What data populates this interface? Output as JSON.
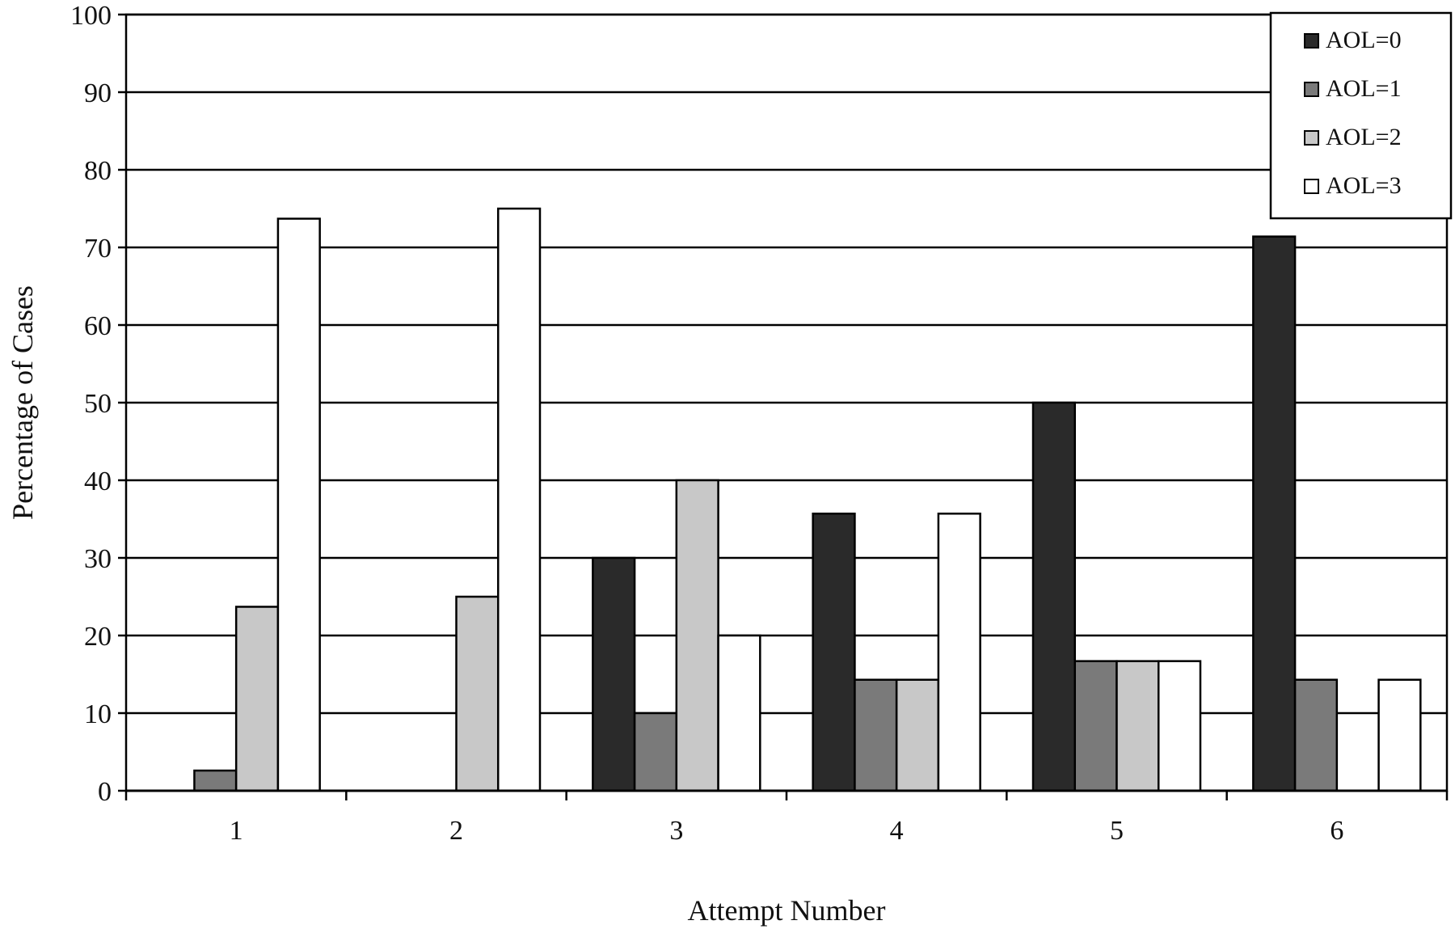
{
  "chart_data": {
    "type": "bar",
    "title": "",
    "xlabel": "Attempt Number",
    "ylabel": "Percentage of Cases",
    "categories": [
      "1",
      "2",
      "3",
      "4",
      "5",
      "6"
    ],
    "ylim": [
      0,
      100
    ],
    "yticks": [
      0,
      10,
      20,
      30,
      40,
      50,
      60,
      70,
      80,
      90,
      100
    ],
    "grid": true,
    "legend_position": "top-right",
    "series": [
      {
        "name": "AOL=0",
        "color": "#2a2a2a",
        "values": [
          0,
          0,
          30,
          35.7,
          50,
          71.4
        ]
      },
      {
        "name": "AOL=1",
        "color": "#7a7a7a",
        "values": [
          2.6,
          0,
          10,
          14.3,
          16.7,
          14.3
        ]
      },
      {
        "name": "AOL=2",
        "color": "#c8c8c8",
        "values": [
          23.7,
          25,
          40,
          14.3,
          16.7,
          0
        ]
      },
      {
        "name": "AOL=3",
        "color": "#ffffff",
        "values": [
          73.7,
          75,
          20,
          35.7,
          16.7,
          14.3
        ]
      }
    ]
  }
}
